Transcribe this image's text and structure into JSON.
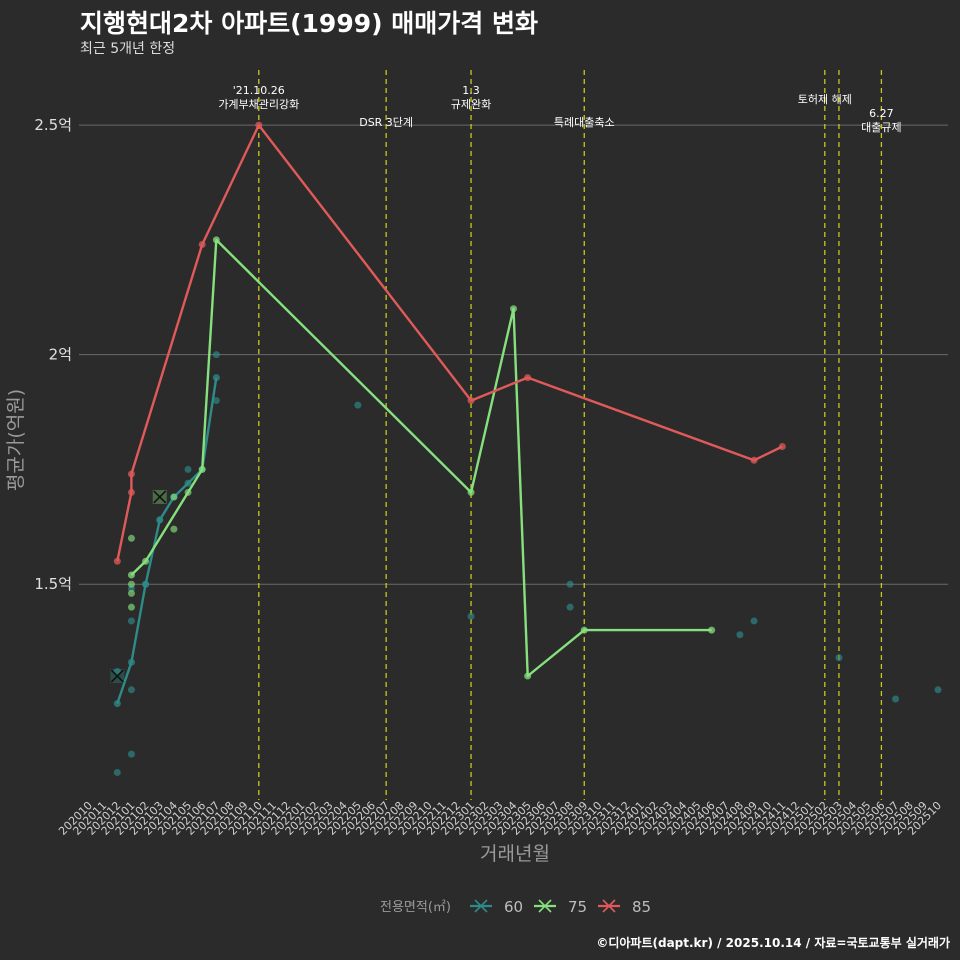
{
  "header": {
    "title": "지행현대2차 아파트(1999) 매매가격 변화",
    "subtitle": "최근 5개년 한정"
  },
  "caption": "©디아파트(dapt.kr) / 2025.10.14 / 자료=국토교통부 실거래가",
  "chart_data": {
    "type": "line",
    "title": "지행현대2차 아파트(1999) 매매가격 변화",
    "xlabel": "거래년월",
    "ylabel": "평균가(억원)",
    "ylim": [
      1.03,
      2.62
    ],
    "yticks": [
      1.5,
      2.0,
      2.5
    ],
    "ytick_labels": [
      "1.5억",
      "2억",
      "2.5억"
    ],
    "xlim": [
      0,
      60
    ],
    "x_labels": [
      "202010",
      "202011",
      "202012",
      "202101",
      "202102",
      "202103",
      "202104",
      "202105",
      "202106",
      "202107",
      "202108",
      "202109",
      "202110",
      "202111",
      "202112",
      "202201",
      "202202",
      "202203",
      "202204",
      "202205",
      "202206",
      "202207",
      "202208",
      "202209",
      "202210",
      "202211",
      "202212",
      "202301",
      "202302",
      "202303",
      "202304",
      "202305",
      "202306",
      "202307",
      "202308",
      "202309",
      "202310",
      "202311",
      "202312",
      "202401",
      "202402",
      "202403",
      "202404",
      "202405",
      "202406",
      "202407",
      "202408",
      "202409",
      "202410",
      "202411",
      "202412",
      "202501",
      "202502",
      "202503",
      "202504",
      "202505",
      "202506",
      "202507",
      "202508",
      "202509",
      "202510"
    ],
    "legend_title": "전용면적(㎡)",
    "series": [
      {
        "name": "60",
        "color": "#2e8b88",
        "line": [
          [
            2,
            1.24
          ],
          [
            3,
            1.33
          ],
          [
            4,
            1.5
          ],
          [
            5,
            1.64
          ],
          [
            6,
            1.69
          ],
          [
            7,
            1.72
          ],
          [
            8,
            1.75
          ],
          [
            9,
            1.95
          ]
        ],
        "points": [
          [
            2,
            1.31
          ],
          [
            2,
            1.09
          ],
          [
            3,
            1.27
          ],
          [
            3,
            1.13
          ],
          [
            3,
            1.42
          ],
          [
            3,
            1.49
          ],
          [
            4,
            1.5
          ],
          [
            5,
            1.64
          ],
          [
            7,
            1.75
          ],
          [
            9,
            1.9
          ],
          [
            9,
            2.0
          ],
          [
            19,
            1.89
          ],
          [
            27,
            1.43
          ],
          [
            34,
            1.5
          ],
          [
            34,
            1.45
          ],
          [
            46,
            1.39
          ],
          [
            47,
            1.42
          ],
          [
            53,
            1.34
          ],
          [
            57,
            1.25
          ],
          [
            60,
            1.27
          ]
        ],
        "x_marks": [
          [
            2,
            1.3
          ]
        ]
      },
      {
        "name": "75",
        "color": "#86e07e",
        "line": [
          [
            3,
            1.52
          ],
          [
            4,
            1.55
          ],
          [
            8,
            1.75
          ],
          [
            9,
            2.25
          ],
          [
            27,
            1.7
          ],
          [
            30,
            2.1
          ],
          [
            31,
            1.3
          ],
          [
            35,
            1.4
          ],
          [
            44,
            1.4
          ]
        ],
        "points": [
          [
            3,
            1.5
          ],
          [
            3,
            1.6
          ],
          [
            3,
            1.45
          ],
          [
            3,
            1.48
          ],
          [
            6,
            1.62
          ],
          [
            6,
            1.69
          ],
          [
            7,
            1.7
          ]
        ],
        "x_marks": [
          [
            5,
            1.69
          ]
        ]
      },
      {
        "name": "85",
        "color": "#e05a5a",
        "line": [
          [
            2,
            1.55
          ],
          [
            3,
            1.7
          ],
          [
            3,
            1.74
          ],
          [
            8,
            2.24
          ],
          [
            12,
            2.5
          ],
          [
            27,
            1.9
          ],
          [
            31,
            1.95
          ],
          [
            47,
            1.77
          ],
          [
            49,
            1.8
          ]
        ],
        "points": [],
        "x_marks": []
      }
    ],
    "events": [
      {
        "x": 12,
        "label_lines": [
          "'21.10.26",
          "가계부채관리강화"
        ],
        "level": 1
      },
      {
        "x": 21,
        "label_lines": [
          "DSR 3단계"
        ],
        "level": 3
      },
      {
        "x": 27,
        "label_lines": [
          "1.3",
          "규제완화"
        ],
        "level": 1
      },
      {
        "x": 35,
        "label_lines": [
          "특례대출축소"
        ],
        "level": 3
      },
      {
        "x": 52,
        "label_lines": [
          "토허제 해제"
        ],
        "level": 2
      },
      {
        "x": 53,
        "label_lines": [],
        "level": 2
      },
      {
        "x": 56,
        "label_lines": [
          "6.27",
          "대출규제"
        ],
        "level": 3
      }
    ]
  }
}
